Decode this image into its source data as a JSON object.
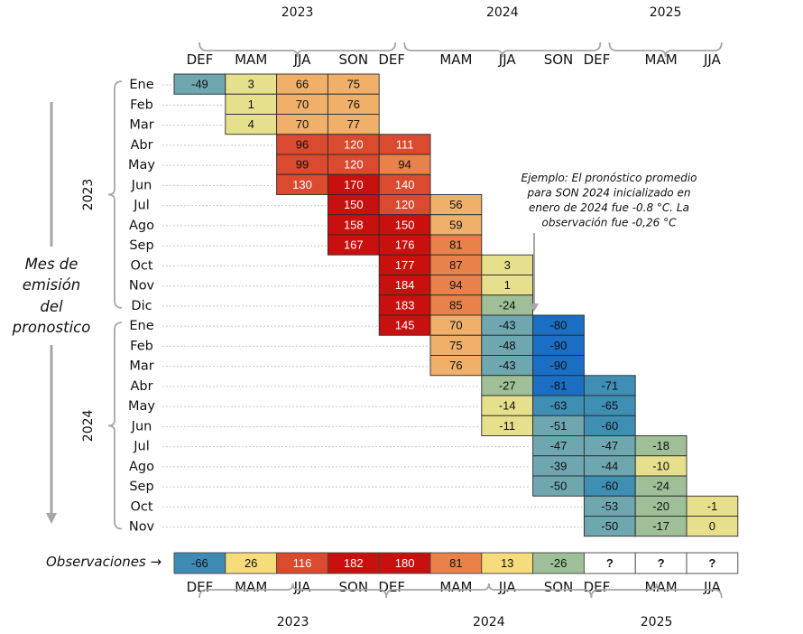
{
  "chart_data": {
    "type": "heatmap",
    "title": "",
    "ylabel": "Mes de emisión del pronostico",
    "xlabel": "",
    "target_seasons": [
      {
        "season": "DEF",
        "year": "2023"
      },
      {
        "season": "MAM",
        "year": "2023"
      },
      {
        "season": "JJA",
        "year": "2023"
      },
      {
        "season": "SON",
        "year": "2023"
      },
      {
        "season": "DEF",
        "year": "2024"
      },
      {
        "season": "MAM",
        "year": "2024"
      },
      {
        "season": "JJA",
        "year": "2024"
      },
      {
        "season": "SON",
        "year": "2024"
      },
      {
        "season": "DEF",
        "year": "2025"
      },
      {
        "season": "MAM",
        "year": "2025"
      },
      {
        "season": "JJA",
        "year": "2025"
      }
    ],
    "season_labels": [
      "DEF",
      "MAM",
      "JJA",
      "SON",
      "DEF",
      "MAM",
      "JJA",
      "SON",
      "DEF",
      "MAM",
      "JJA"
    ],
    "top_year_groups": [
      {
        "label": "2023",
        "from": 0,
        "to": 4
      },
      {
        "label": "2024",
        "from": 4,
        "to": 8
      },
      {
        "label": "2025",
        "from": 8,
        "to": 10
      }
    ],
    "bottom_year_groups": [
      {
        "label": "2023",
        "from": 0,
        "to": 4
      },
      {
        "label": "2024",
        "from": 4,
        "to": 8
      },
      {
        "label": "2025",
        "from": 8,
        "to": 10
      }
    ],
    "issue_year_groups": [
      {
        "label": "2023",
        "from": 0,
        "to": 11
      },
      {
        "label": "2024",
        "from": 12,
        "to": 22
      }
    ],
    "rows": [
      {
        "month": "Ene",
        "year": "2023",
        "start": 0,
        "values": [
          -49,
          3,
          66,
          75
        ]
      },
      {
        "month": "Feb",
        "year": "2023",
        "start": 1,
        "values": [
          1,
          70,
          76
        ]
      },
      {
        "month": "Mar",
        "year": "2023",
        "start": 1,
        "values": [
          4,
          70,
          77
        ]
      },
      {
        "month": "Abr",
        "year": "2023",
        "start": 2,
        "values": [
          96,
          120,
          111
        ]
      },
      {
        "month": "May",
        "year": "2023",
        "start": 2,
        "values": [
          99,
          120,
          94
        ]
      },
      {
        "month": "Jun",
        "year": "2023",
        "start": 2,
        "values": [
          130,
          170,
          140
        ]
      },
      {
        "month": "Jul",
        "year": "2023",
        "start": 3,
        "values": [
          150,
          120,
          56
        ]
      },
      {
        "month": "Ago",
        "year": "2023",
        "start": 3,
        "values": [
          158,
          150,
          59
        ]
      },
      {
        "month": "Sep",
        "year": "2023",
        "start": 3,
        "values": [
          167,
          176,
          81
        ]
      },
      {
        "month": "Oct",
        "year": "2023",
        "start": 4,
        "values": [
          177,
          87,
          3
        ]
      },
      {
        "month": "Nov",
        "year": "2023",
        "start": 4,
        "values": [
          184,
          94,
          1
        ]
      },
      {
        "month": "Dic",
        "year": "2023",
        "start": 4,
        "values": [
          183,
          85,
          -24
        ]
      },
      {
        "month": "Ene",
        "year": "2024",
        "start": 4,
        "values": [
          145,
          70,
          -43,
          -80
        ]
      },
      {
        "month": "Feb",
        "year": "2024",
        "start": 5,
        "values": [
          75,
          -48,
          -90
        ]
      },
      {
        "month": "Mar",
        "year": "2024",
        "start": 5,
        "values": [
          76,
          -43,
          -90
        ]
      },
      {
        "month": "Abr",
        "year": "2024",
        "start": 6,
        "values": [
          -27,
          -81,
          -71
        ]
      },
      {
        "month": "May",
        "year": "2024",
        "start": 6,
        "values": [
          -14,
          -63,
          -65
        ]
      },
      {
        "month": "Jun",
        "year": "2024",
        "start": 6,
        "values": [
          -11,
          -51,
          -60
        ]
      },
      {
        "month": "Jul",
        "year": "2024",
        "start": 7,
        "values": [
          -47,
          -47,
          -18
        ]
      },
      {
        "month": "Ago",
        "year": "2024",
        "start": 7,
        "values": [
          -39,
          -44,
          -10
        ]
      },
      {
        "month": "Sep",
        "year": "2024",
        "start": 7,
        "values": [
          -50,
          -60,
          -24
        ]
      },
      {
        "month": "Oct",
        "year": "2024",
        "start": 8,
        "values": [
          -53,
          -20,
          -1
        ]
      },
      {
        "month": "Nov",
        "year": "2024",
        "start": 8,
        "values": [
          -50,
          -17,
          0
        ]
      }
    ],
    "observations": {
      "label": "Observaciones →",
      "values": [
        -66,
        26,
        116,
        182,
        180,
        81,
        13,
        -26,
        "?",
        "?",
        "?"
      ]
    },
    "annotation": {
      "lines": [
        "Ejemplo: El pronóstico promedio",
        "para SON 2024 inicializado en",
        "enero de 2024 fue -0.8 °C.  La",
        "observación fue -0,26 °C"
      ],
      "target_row": 12,
      "target_col": 7
    },
    "colorscale": {
      "strong_cold": "#1a6fc4",
      "cold": "#3f8fb5",
      "cool": "#6fa7b0",
      "mild_cool": "#9fbf98",
      "neutral": "#e6e08c",
      "warm": "#f0b06a",
      "hot": "#e8824a",
      "very_hot": "#d94a2e",
      "extreme": "#c8110e",
      "unknown": "#ffffff"
    }
  }
}
